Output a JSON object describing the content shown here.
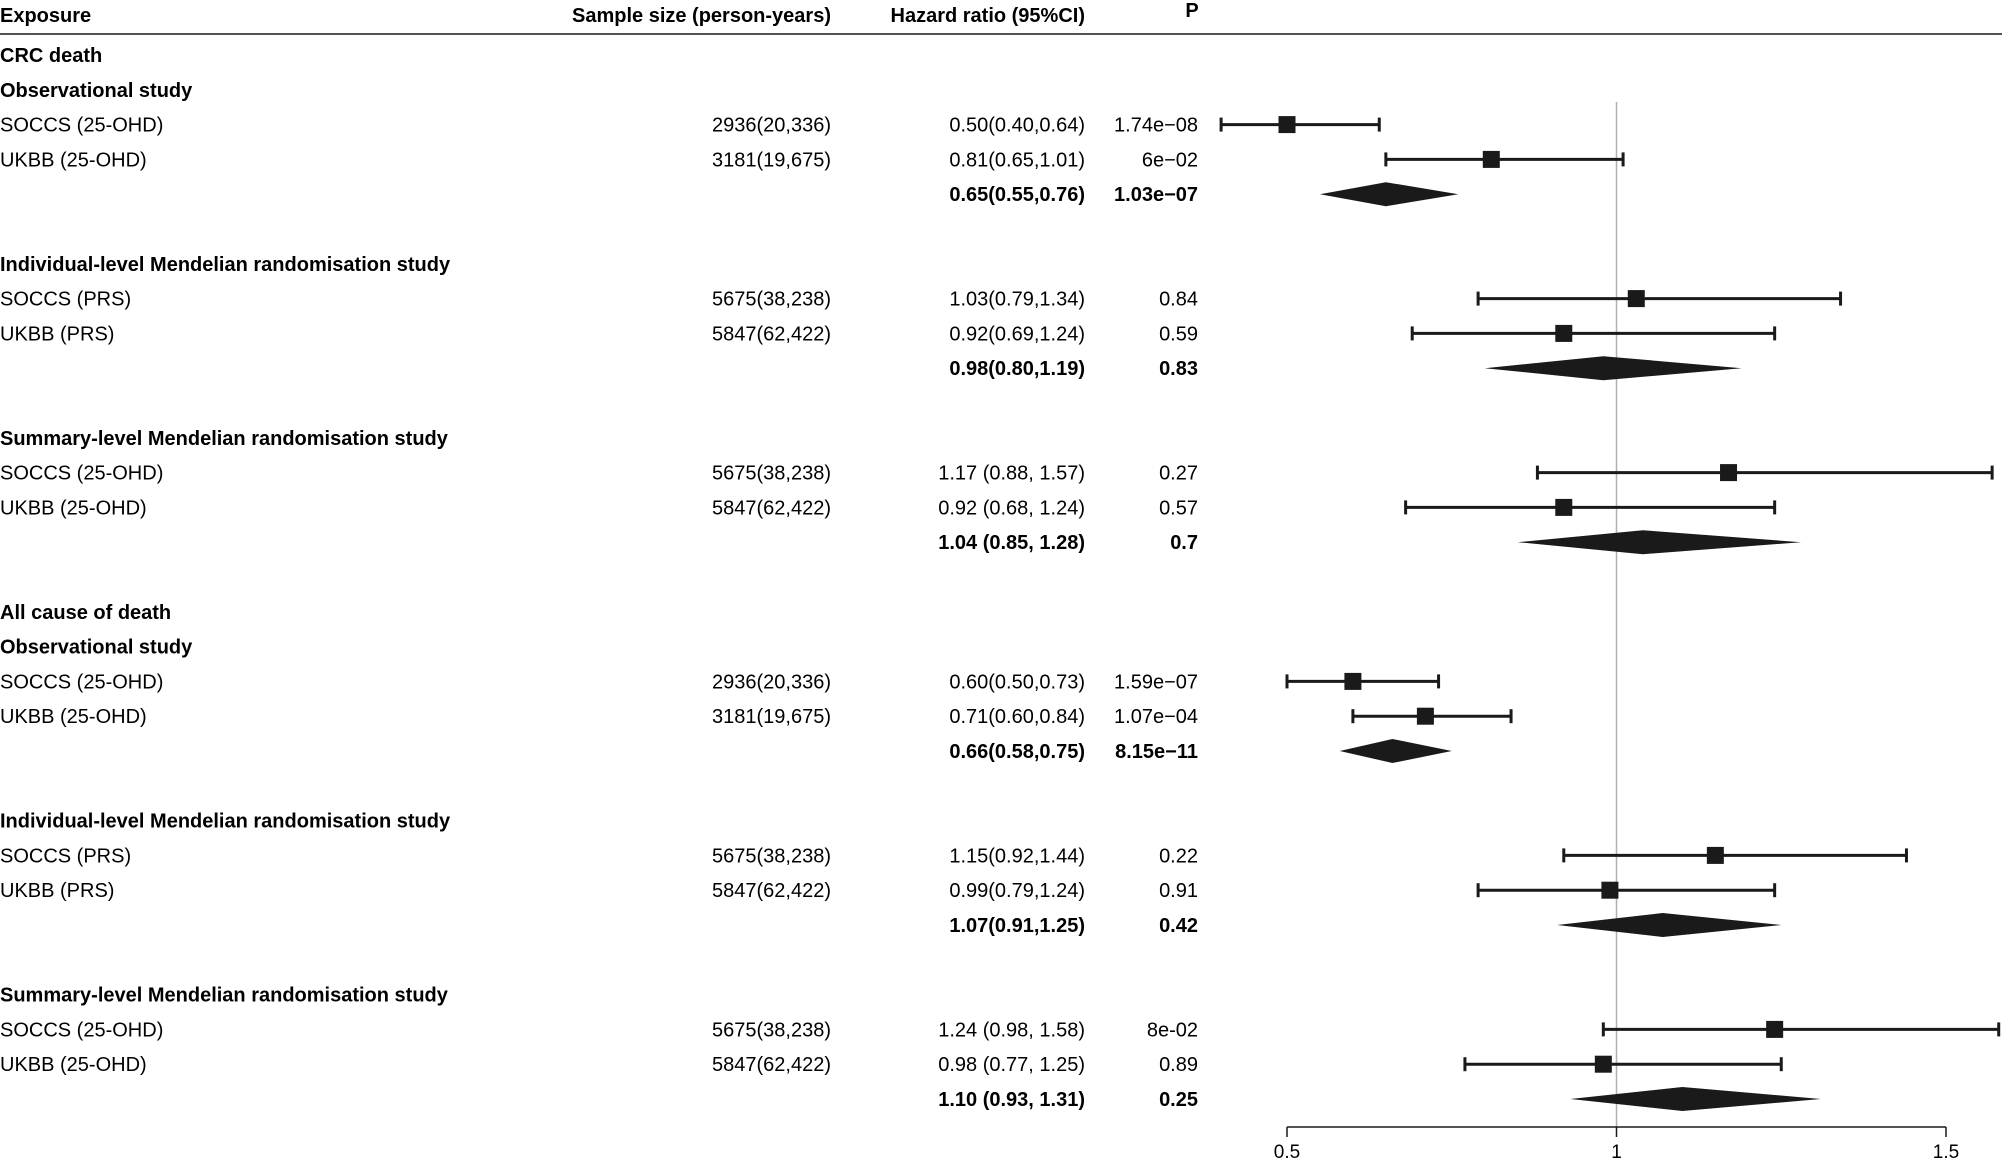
{
  "header": {
    "exposure": "Exposure",
    "sample": "Sample size (person-years)",
    "hr": "Hazard ratio (95%CI)",
    "p": "P"
  },
  "colors": {
    "ink": "#1a1a1a",
    "refline": "#b0b0b0"
  },
  "chart_data": {
    "type": "forest",
    "x_axis": {
      "min": 0.5,
      "max": 1.5,
      "ticks": [
        0.5,
        1,
        1.5
      ],
      "tick_labels": [
        "0.5",
        "1",
        "1.5"
      ],
      "reference": 1
    },
    "rows": [
      {
        "kind": "header",
        "label": "CRC death"
      },
      {
        "kind": "header",
        "label": "Observational study"
      },
      {
        "kind": "study",
        "label": "SOCCS (25-OHD)",
        "n": "2936(20,336)",
        "hr_text": "0.50(0.40,0.64)",
        "p": "1.74e−08",
        "est": 0.5,
        "lo": 0.4,
        "hi": 0.64
      },
      {
        "kind": "study",
        "label": "UKBB (25-OHD)",
        "n": "3181(19,675)",
        "hr_text": "0.81(0.65,1.01)",
        "p": "6e−02",
        "est": 0.81,
        "lo": 0.65,
        "hi": 1.01
      },
      {
        "kind": "summary",
        "label": "",
        "n": "",
        "hr_text": "0.65(0.55,0.76)",
        "p": "1.03e−07",
        "est": 0.65,
        "lo": 0.55,
        "hi": 0.76
      },
      {
        "kind": "blank"
      },
      {
        "kind": "header",
        "label": "Individual-level Mendelian randomisation study"
      },
      {
        "kind": "study",
        "label": "SOCCS (PRS)",
        "n": "5675(38,238)",
        "hr_text": "1.03(0.79,1.34)",
        "p": "0.84",
        "est": 1.03,
        "lo": 0.79,
        "hi": 1.34
      },
      {
        "kind": "study",
        "label": "UKBB (PRS)",
        "n": "5847(62,422)",
        "hr_text": "0.92(0.69,1.24)",
        "p": "0.59",
        "est": 0.92,
        "lo": 0.69,
        "hi": 1.24
      },
      {
        "kind": "summary",
        "label": "",
        "n": "",
        "hr_text": "0.98(0.80,1.19)",
        "p": "0.83",
        "est": 0.98,
        "lo": 0.8,
        "hi": 1.19
      },
      {
        "kind": "blank"
      },
      {
        "kind": "header",
        "label": "Summary-level Mendelian randomisation study"
      },
      {
        "kind": "study",
        "label": "SOCCS (25-OHD)",
        "n": "5675(38,238)",
        "hr_text": "1.17 (0.88, 1.57)",
        "p": "0.27",
        "est": 1.17,
        "lo": 0.88,
        "hi": 1.57
      },
      {
        "kind": "study",
        "label": "UKBB (25-OHD)",
        "n": "5847(62,422)",
        "hr_text": "0.92 (0.68, 1.24)",
        "p": "0.57",
        "est": 0.92,
        "lo": 0.68,
        "hi": 1.24
      },
      {
        "kind": "summary",
        "label": "",
        "n": "",
        "hr_text": "1.04 (0.85, 1.28)",
        "p": "0.7",
        "est": 1.04,
        "lo": 0.85,
        "hi": 1.28
      },
      {
        "kind": "blank"
      },
      {
        "kind": "header",
        "label": "All cause of death"
      },
      {
        "kind": "header",
        "label": "Observational study"
      },
      {
        "kind": "study",
        "label": "SOCCS (25-OHD)",
        "n": "2936(20,336)",
        "hr_text": "0.60(0.50,0.73)",
        "p": "1.59e−07",
        "est": 0.6,
        "lo": 0.5,
        "hi": 0.73
      },
      {
        "kind": "study",
        "label": "UKBB (25-OHD)",
        "n": "3181(19,675)",
        "hr_text": "0.71(0.60,0.84)",
        "p": "1.07e−04",
        "est": 0.71,
        "lo": 0.6,
        "hi": 0.84
      },
      {
        "kind": "summary",
        "label": "",
        "n": "",
        "hr_text": "0.66(0.58,0.75)",
        "p": "8.15e−11",
        "est": 0.66,
        "lo": 0.58,
        "hi": 0.75
      },
      {
        "kind": "blank"
      },
      {
        "kind": "header",
        "label": "Individual-level Mendelian randomisation study"
      },
      {
        "kind": "study",
        "label": "SOCCS (PRS)",
        "n": "5675(38,238)",
        "hr_text": "1.15(0.92,1.44)",
        "p": "0.22",
        "est": 1.15,
        "lo": 0.92,
        "hi": 1.44
      },
      {
        "kind": "study",
        "label": "UKBB (PRS)",
        "n": "5847(62,422)",
        "hr_text": "0.99(0.79,1.24)",
        "p": "0.91",
        "est": 0.99,
        "lo": 0.79,
        "hi": 1.24
      },
      {
        "kind": "summary",
        "label": "",
        "n": "",
        "hr_text": "1.07(0.91,1.25)",
        "p": "0.42",
        "est": 1.07,
        "lo": 0.91,
        "hi": 1.25
      },
      {
        "kind": "blank"
      },
      {
        "kind": "header",
        "label": "Summary-level Mendelian randomisation study"
      },
      {
        "kind": "study",
        "label": "SOCCS (25-OHD)",
        "n": "5675(38,238)",
        "hr_text": "1.24 (0.98, 1.58)",
        "p": "8e-02",
        "est": 1.24,
        "lo": 0.98,
        "hi": 1.58
      },
      {
        "kind": "study",
        "label": "UKBB (25-OHD)",
        "n": "5847(62,422)",
        "hr_text": "0.98 (0.77, 1.25)",
        "p": "0.89",
        "est": 0.98,
        "lo": 0.77,
        "hi": 1.25
      },
      {
        "kind": "summary",
        "label": "",
        "n": "",
        "hr_text": "1.10 (0.93, 1.31)",
        "p": "0.25",
        "est": 1.1,
        "lo": 0.93,
        "hi": 1.31
      }
    ]
  }
}
